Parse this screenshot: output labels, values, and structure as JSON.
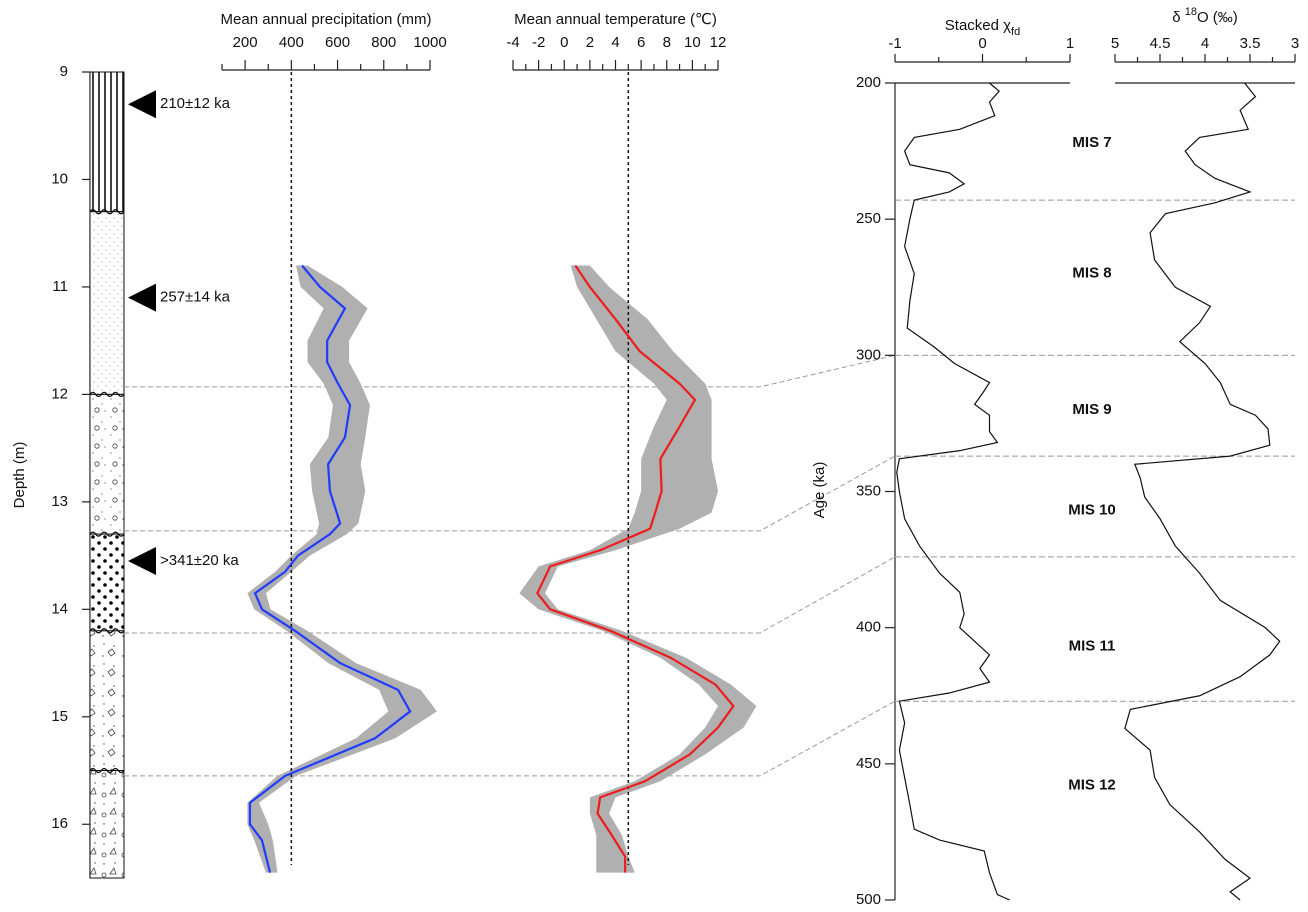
{
  "chart_data": [
    {
      "type": "column",
      "ylabel": "Depth (m)",
      "ylim": [
        9,
        16.5
      ],
      "yticks": [
        9,
        10,
        11,
        12,
        13,
        14,
        15,
        16
      ],
      "layers": [
        9,
        10.3,
        12,
        13.3,
        14.2,
        15.5,
        16.5
      ],
      "dates": [
        {
          "depth": 9.3,
          "label": "210±12 ka"
        },
        {
          "depth": 11.1,
          "label": "257±14 ka"
        },
        {
          "depth": 13.55,
          "label": ">341±20 ka"
        }
      ],
      "ties": [
        {
          "depth": 11.93,
          "age": 300
        },
        {
          "depth": 13.27,
          "age": 337
        },
        {
          "depth": 14.22,
          "age": 374
        },
        {
          "depth": 15.55,
          "age": 427
        }
      ]
    },
    {
      "type": "profile",
      "xlabel": "Mean annual precipitation (mm)",
      "xlim": [
        100,
        1000
      ],
      "xticks": [
        200,
        400,
        600,
        800,
        1000
      ],
      "xminor": [
        100,
        300,
        500,
        700,
        900
      ],
      "reference": 400,
      "depth": [
        10.8,
        11.0,
        11.2,
        11.5,
        11.7,
        11.9,
        12.1,
        12.4,
        12.65,
        12.9,
        13.2,
        13.3,
        13.5,
        13.65,
        13.85,
        14.0,
        14.2,
        14.5,
        14.75,
        14.95,
        15.2,
        15.55,
        15.8,
        16.0,
        16.15,
        16.45
      ],
      "values": [
        446,
        524,
        632,
        555,
        555,
        602,
        654,
        632,
        559,
        567,
        611,
        567,
        429,
        373,
        243,
        273,
        416,
        611,
        862,
        914,
        762,
        373,
        221,
        221,
        273,
        308
      ],
      "lower": [
        420,
        440,
        540,
        470,
        470,
        540,
        580,
        560,
        480,
        490,
        520,
        510,
        400,
        330,
        210,
        240,
        380,
        560,
        780,
        820,
        680,
        340,
        210,
        210,
        240,
        290
      ],
      "upper": [
        470,
        620,
        730,
        650,
        650,
        700,
        740,
        720,
        700,
        720,
        690,
        640,
        480,
        400,
        290,
        310,
        470,
        680,
        960,
        1030,
        850,
        420,
        260,
        300,
        320,
        340
      ],
      "color": "#1f3cff",
      "band_color": "#b0b0b0"
    },
    {
      "type": "profile",
      "xlabel": "Mean annual temperature (℃)",
      "xlim": [
        -4,
        12
      ],
      "xticks": [
        -4,
        -2,
        0,
        2,
        4,
        6,
        8,
        10,
        12
      ],
      "xminor": [
        -3,
        -1,
        1,
        3,
        5,
        7,
        9,
        11
      ],
      "reference": 5,
      "depth": [
        10.8,
        11.0,
        11.3,
        11.6,
        11.9,
        12.05,
        12.3,
        12.6,
        12.9,
        13.1,
        13.25,
        13.45,
        13.6,
        13.85,
        14.0,
        14.2,
        14.45,
        14.7,
        14.9,
        15.1,
        15.35,
        15.6,
        15.75,
        15.9,
        16.1,
        16.3,
        16.45
      ],
      "values": [
        0.86,
        2.0,
        4.0,
        5.9,
        9.0,
        10.2,
        9.0,
        7.5,
        7.6,
        7.1,
        6.7,
        2.8,
        -1.1,
        -2.1,
        -1.1,
        3.6,
        8.3,
        11.8,
        13.2,
        12,
        9.8,
        6.3,
        2.8,
        2.6,
        3.7,
        4.75,
        4.75
      ],
      "lower": [
        0.5,
        1,
        2.5,
        4,
        7,
        8,
        7,
        6,
        6,
        5.5,
        5,
        2,
        -2,
        -3.5,
        -2,
        3,
        7.5,
        10.5,
        12,
        11,
        9,
        5.5,
        2,
        2,
        2.5,
        2.5,
        2.5
      ],
      "upper": [
        2,
        3.5,
        6.5,
        8.5,
        11,
        11.5,
        11.5,
        11.5,
        12,
        11.5,
        9,
        4,
        -0.5,
        -1.5,
        -0.5,
        4.5,
        9.5,
        13,
        15,
        14,
        11,
        7.5,
        4,
        3.5,
        4.5,
        5,
        5.5
      ],
      "color": "#ee1c1c",
      "band_color": "#b0b0b0"
    },
    {
      "type": "line",
      "xlabel": "Stacked χ",
      "xlabel_sub": "fd",
      "ylabel": "Age (ka)",
      "ylim": [
        200,
        500
      ],
      "yticks": [
        200,
        250,
        300,
        350,
        400,
        450,
        500
      ],
      "xlim": [
        -1,
        1
      ],
      "xticks": [
        -1,
        0,
        1
      ],
      "xminor": [
        -0.5,
        0.5
      ],
      "age": [
        200,
        203,
        207,
        212,
        217,
        220,
        225,
        230,
        233,
        237,
        240,
        243,
        250,
        260,
        270,
        280,
        290,
        297,
        303,
        310,
        313,
        318,
        322,
        328,
        332,
        335,
        338,
        343,
        350,
        360,
        370,
        380,
        387,
        395,
        400,
        405,
        410,
        415,
        420,
        424,
        427,
        435,
        445,
        455,
        465,
        474,
        478,
        482,
        490,
        498,
        500
      ],
      "values": [
        0.08,
        0.19,
        0.08,
        0.14,
        -0.26,
        -0.78,
        -0.89,
        -0.83,
        -0.38,
        -0.21,
        -0.38,
        -0.78,
        -0.83,
        -0.89,
        -0.78,
        -0.83,
        -0.86,
        -0.55,
        -0.32,
        0.08,
        0.02,
        -0.09,
        0.08,
        0.08,
        0.17,
        -0.26,
        -0.95,
        -0.98,
        -0.95,
        -0.89,
        -0.72,
        -0.49,
        -0.26,
        -0.21,
        -0.26,
        -0.09,
        0.08,
        -0.03,
        0.08,
        -0.38,
        -0.95,
        -0.89,
        -0.95,
        -0.89,
        -0.83,
        -0.78,
        -0.49,
        0.02,
        0.08,
        0.17,
        0.31
      ],
      "color": "#111111",
      "stages": [
        {
          "label": "MIS 7",
          "age": 222
        },
        {
          "label": "MIS 8",
          "age": 270
        },
        {
          "label": "MIS 9",
          "age": 320
        },
        {
          "label": "MIS 10",
          "age": 357
        },
        {
          "label": "MIS 11",
          "age": 407
        },
        {
          "label": "MIS 12",
          "age": 458
        }
      ],
      "boundaries": [
        243,
        300,
        337,
        374,
        427
      ]
    },
    {
      "type": "line",
      "xlabel_parts": [
        "δ ",
        "18",
        "O (‰)"
      ],
      "xlim": [
        5,
        3
      ],
      "xticks": [
        5,
        4.5,
        4,
        3.5,
        3
      ],
      "xminor": [
        4.75,
        4.25,
        3.75,
        3.25
      ],
      "age": [
        200,
        205,
        210,
        217,
        220,
        225,
        230,
        235,
        240,
        244,
        248,
        255,
        265,
        275,
        282,
        288,
        295,
        303,
        310,
        318,
        322,
        327,
        333,
        337,
        340,
        345,
        352,
        360,
        370,
        380,
        390,
        400,
        405,
        410,
        418,
        425,
        430,
        437,
        445,
        455,
        465,
        475,
        485,
        492,
        497,
        500
      ],
      "values": [
        3.56,
        3.44,
        3.61,
        3.52,
        4.06,
        4.22,
        4.11,
        3.89,
        3.5,
        3.89,
        4.44,
        4.61,
        4.56,
        4.33,
        3.94,
        4.06,
        4.28,
        4.0,
        3.83,
        3.72,
        3.44,
        3.3,
        3.28,
        3.72,
        4.78,
        4.72,
        4.67,
        4.5,
        4.33,
        4.06,
        3.83,
        3.33,
        3.17,
        3.28,
        3.61,
        4.06,
        4.83,
        4.89,
        4.61,
        4.56,
        4.39,
        4.06,
        3.78,
        3.5,
        3.72,
        3.61
      ],
      "color": "#111111"
    }
  ]
}
